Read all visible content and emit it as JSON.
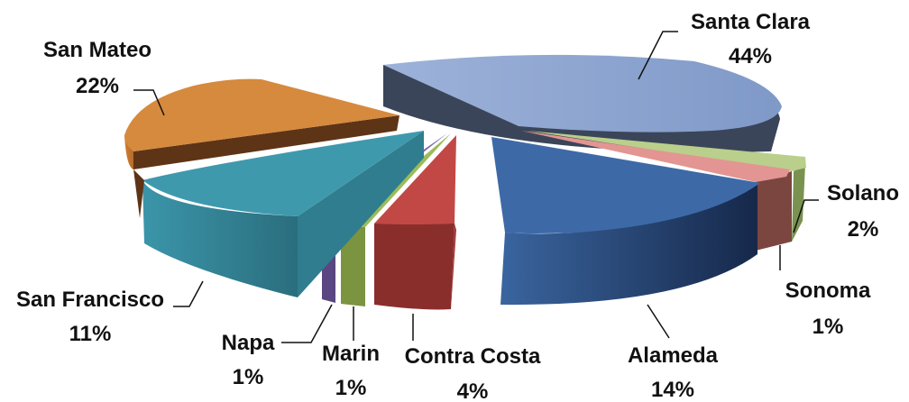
{
  "chart_data": {
    "type": "pie",
    "style": "exploded 3D pie",
    "unit": "%",
    "legend": "none",
    "data_labels": "outside with leader lines",
    "slices": [
      {
        "name": "Santa Clara",
        "value": 44,
        "label": "44%",
        "color": "#8ea6d2"
      },
      {
        "name": "Solano",
        "value": 2,
        "label": "2%",
        "color": "#b9cf8b"
      },
      {
        "name": "Sonoma",
        "value": 1,
        "label": "1%",
        "color": "#e39593"
      },
      {
        "name": "Alameda",
        "value": 14,
        "label": "14%",
        "color": "#3d6aa7"
      },
      {
        "name": "Contra Costa",
        "value": 4,
        "label": "4%",
        "color": "#b8413e"
      },
      {
        "name": "Marin",
        "value": 1,
        "label": "1%",
        "color": "#8aa648"
      },
      {
        "name": "Napa",
        "value": 1,
        "label": "1%",
        "color": "#6e569a"
      },
      {
        "name": "San Francisco",
        "value": 11,
        "label": "11%",
        "color": "#3f99ad"
      },
      {
        "name": "San Mateo",
        "value": 22,
        "label": "22%",
        "color": "#d68a3d"
      }
    ]
  }
}
